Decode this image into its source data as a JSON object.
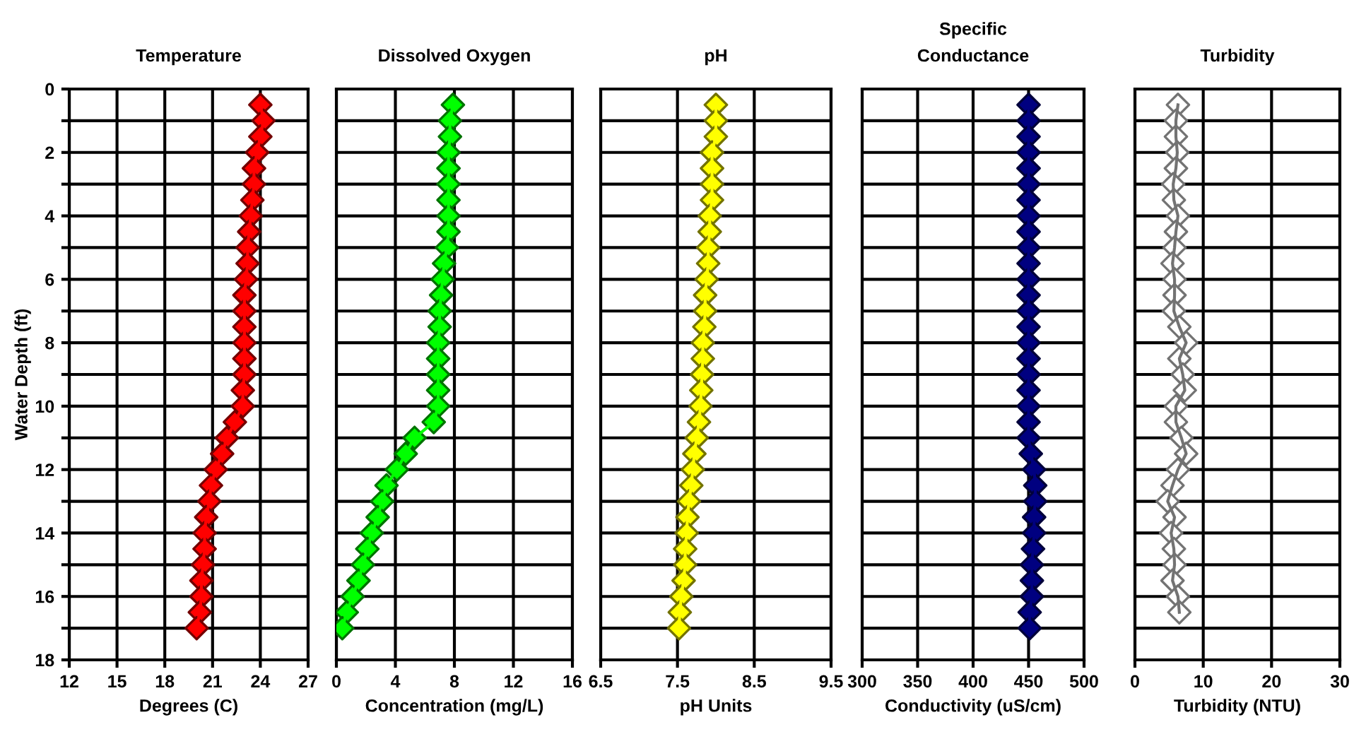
{
  "chart_data": [
    {
      "type": "line",
      "title": "Temperature",
      "xlabel": "Degrees (C)",
      "ylabel": "Water Depth (ft)",
      "marker": "diamond",
      "grid": true,
      "xlim": [
        12,
        27
      ],
      "xticks": [
        12,
        15,
        18,
        21,
        24,
        27
      ],
      "ylim": [
        18,
        0
      ],
      "yticks": [
        0,
        {
          "value": 1,
          "label": null
        },
        2,
        {
          "value": 3,
          "label": null
        },
        4,
        {
          "value": 5,
          "label": null
        },
        6,
        {
          "value": 7,
          "label": null
        },
        8,
        {
          "value": 9,
          "label": null
        },
        10,
        {
          "value": 11,
          "label": null
        },
        12,
        {
          "value": 13,
          "label": null
        },
        14,
        {
          "value": 15,
          "label": null
        },
        16,
        {
          "value": 17,
          "label": null
        },
        18
      ],
      "series": [
        {
          "color": "#ff0000",
          "x": [
            24.0,
            24.2,
            24.0,
            23.8,
            23.6,
            23.6,
            23.5,
            23.4,
            23.3,
            23.2,
            23.2,
            23.1,
            23.0,
            23.0,
            23.0,
            23.0,
            23.0,
            23.0,
            22.9,
            22.9,
            22.4,
            21.9,
            21.6,
            21.2,
            20.9,
            20.8,
            20.6,
            20.5,
            20.5,
            20.4,
            20.3,
            20.3,
            20.2,
            20.0
          ],
          "values": [
            0.5,
            1,
            1.5,
            2,
            2.5,
            3,
            3.5,
            4,
            4.5,
            5,
            5.5,
            6,
            6.5,
            7,
            7.5,
            8,
            8.5,
            9,
            9.5,
            10,
            10.5,
            11,
            11.5,
            12,
            12.5,
            13,
            13.5,
            14,
            14.5,
            15,
            15.5,
            16,
            16.5,
            17
          ]
        }
      ]
    },
    {
      "type": "line",
      "title": "Dissolved Oxygen",
      "xlabel": "Concentration (mg/L)",
      "marker": "diamond",
      "grid": true,
      "tick_labels": "x",
      "xlim": [
        0,
        16
      ],
      "xticks": [
        0,
        4,
        8,
        12,
        16
      ],
      "ylim": [
        18,
        0
      ],
      "yticks": [
        0,
        {
          "value": 1,
          "label": null
        },
        2,
        {
          "value": 3,
          "label": null
        },
        4,
        {
          "value": 5,
          "label": null
        },
        6,
        {
          "value": 7,
          "label": null
        },
        8,
        {
          "value": 9,
          "label": null
        },
        10,
        {
          "value": 11,
          "label": null
        },
        12,
        {
          "value": 13,
          "label": null
        },
        14,
        {
          "value": 15,
          "label": null
        },
        16,
        {
          "value": 17,
          "label": null
        },
        18
      ],
      "series": [
        {
          "color": "#00ff00",
          "x": [
            7.9,
            7.7,
            7.7,
            7.6,
            7.6,
            7.6,
            7.6,
            7.6,
            7.6,
            7.5,
            7.3,
            7.2,
            7.1,
            7.0,
            7.0,
            6.9,
            6.9,
            6.9,
            6.9,
            6.9,
            6.6,
            5.3,
            4.7,
            4.1,
            3.4,
            3.1,
            2.8,
            2.4,
            2.1,
            1.8,
            1.5,
            1.1,
            0.7,
            0.4
          ],
          "values": [
            0.5,
            1,
            1.5,
            2,
            2.5,
            3,
            3.5,
            4,
            4.5,
            5,
            5.5,
            6,
            6.5,
            7,
            7.5,
            8,
            8.5,
            9,
            9.5,
            10,
            10.5,
            11,
            11.5,
            12,
            12.5,
            13,
            13.5,
            14,
            14.5,
            15,
            15.5,
            16,
            16.5,
            17
          ]
        }
      ]
    },
    {
      "type": "line",
      "title": "pH",
      "xlabel": "pH Units",
      "marker": "diamond",
      "grid": true,
      "tick_labels": "x",
      "xlim": [
        6.5,
        9.5
      ],
      "xticks": [
        6.5,
        7.5,
        8.5,
        9.5
      ],
      "ylim": [
        18,
        0
      ],
      "yticks": [
        0,
        {
          "value": 1,
          "label": null
        },
        2,
        {
          "value": 3,
          "label": null
        },
        4,
        {
          "value": 5,
          "label": null
        },
        6,
        {
          "value": 7,
          "label": null
        },
        8,
        {
          "value": 9,
          "label": null
        },
        10,
        {
          "value": 11,
          "label": null
        },
        12,
        {
          "value": 13,
          "label": null
        },
        14,
        {
          "value": 15,
          "label": null
        },
        16,
        {
          "value": 17,
          "label": null
        },
        18
      ],
      "series": [
        {
          "color": "#ffff00",
          "x": [
            8.0,
            8.0,
            8.0,
            7.95,
            7.95,
            7.95,
            7.95,
            7.92,
            7.92,
            7.9,
            7.9,
            7.88,
            7.86,
            7.86,
            7.85,
            7.83,
            7.83,
            7.82,
            7.81,
            7.8,
            7.78,
            7.75,
            7.72,
            7.7,
            7.68,
            7.65,
            7.63,
            7.62,
            7.6,
            7.6,
            7.58,
            7.55,
            7.53,
            7.52
          ],
          "values": [
            0.5,
            1,
            1.5,
            2,
            2.5,
            3,
            3.5,
            4,
            4.5,
            5,
            5.5,
            6,
            6.5,
            7,
            7.5,
            8,
            8.5,
            9,
            9.5,
            10,
            10.5,
            11,
            11.5,
            12,
            12.5,
            13,
            13.5,
            14,
            14.5,
            15,
            15.5,
            16,
            16.5,
            17
          ]
        }
      ]
    },
    {
      "type": "line",
      "title": "Specific\nConductance",
      "xlabel": "Conductivity (uS/cm)",
      "marker": "diamond",
      "grid": true,
      "tick_labels": "x",
      "xlim": [
        300,
        500
      ],
      "xticks": [
        300,
        350,
        400,
        450,
        500
      ],
      "ylim": [
        18,
        0
      ],
      "yticks": [
        0,
        {
          "value": 1,
          "label": null
        },
        2,
        {
          "value": 3,
          "label": null
        },
        4,
        {
          "value": 5,
          "label": null
        },
        6,
        {
          "value": 7,
          "label": null
        },
        8,
        {
          "value": 9,
          "label": null
        },
        10,
        {
          "value": 11,
          "label": null
        },
        12,
        {
          "value": 13,
          "label": null
        },
        14,
        {
          "value": 15,
          "label": null
        },
        16,
        {
          "value": 17,
          "label": null
        },
        18
      ],
      "series": [
        {
          "color": "#000080",
          "x": [
            450,
            450,
            450,
            450,
            450,
            450,
            450,
            450,
            450,
            450,
            450,
            450,
            450,
            450,
            450,
            450,
            450,
            450,
            450,
            450,
            450,
            450,
            452,
            455,
            456,
            456,
            455,
            455,
            454,
            453,
            453,
            453,
            451,
            451
          ],
          "values": [
            0.5,
            1,
            1.5,
            2,
            2.5,
            3,
            3.5,
            4,
            4.5,
            5,
            5.5,
            6,
            6.5,
            7,
            7.5,
            8,
            8.5,
            9,
            9.5,
            10,
            10.5,
            11,
            11.5,
            12,
            12.5,
            13,
            13.5,
            14,
            14.5,
            15,
            15.5,
            16,
            16.5,
            17
          ]
        }
      ]
    },
    {
      "type": "line",
      "title": "Turbidity",
      "xlabel": "Turbidity (NTU)",
      "marker": "diamond",
      "grid": true,
      "tick_labels": "x",
      "xlim": [
        0,
        30
      ],
      "xticks": [
        0,
        10,
        20,
        30
      ],
      "ylim": [
        18,
        0
      ],
      "yticks": [
        0,
        {
          "value": 1,
          "label": null
        },
        2,
        {
          "value": 3,
          "label": null
        },
        4,
        {
          "value": 5,
          "label": null
        },
        6,
        {
          "value": 7,
          "label": null
        },
        8,
        {
          "value": 9,
          "label": null
        },
        10,
        {
          "value": 11,
          "label": null
        },
        12,
        {
          "value": 13,
          "label": null
        },
        14,
        {
          "value": 15,
          "label": null
        },
        16,
        {
          "value": 17,
          "label": null
        },
        18
      ],
      "series": [
        {
          "color": "#ffffff",
          "x": [
            6.3,
            6.0,
            6.0,
            6.2,
            6.0,
            5.6,
            5.7,
            6.3,
            6.0,
            5.8,
            5.5,
            5.8,
            5.8,
            5.7,
            6.5,
            7.5,
            6.5,
            7.0,
            7.3,
            6.0,
            6.0,
            6.8,
            7.5,
            6.3,
            5.5,
            4.8,
            5.8,
            5.3,
            5.7,
            5.8,
            5.5,
            6.3,
            6.5
          ],
          "values": [
            0.5,
            1,
            1.5,
            2,
            2.5,
            3,
            3.5,
            4,
            4.5,
            5,
            5.5,
            6,
            6.5,
            7,
            7.5,
            8,
            8.5,
            9,
            9.5,
            10,
            10.5,
            11,
            11.5,
            12,
            12.5,
            13,
            13.5,
            14,
            14.5,
            15,
            15.5,
            16,
            16.5
          ]
        }
      ]
    }
  ]
}
